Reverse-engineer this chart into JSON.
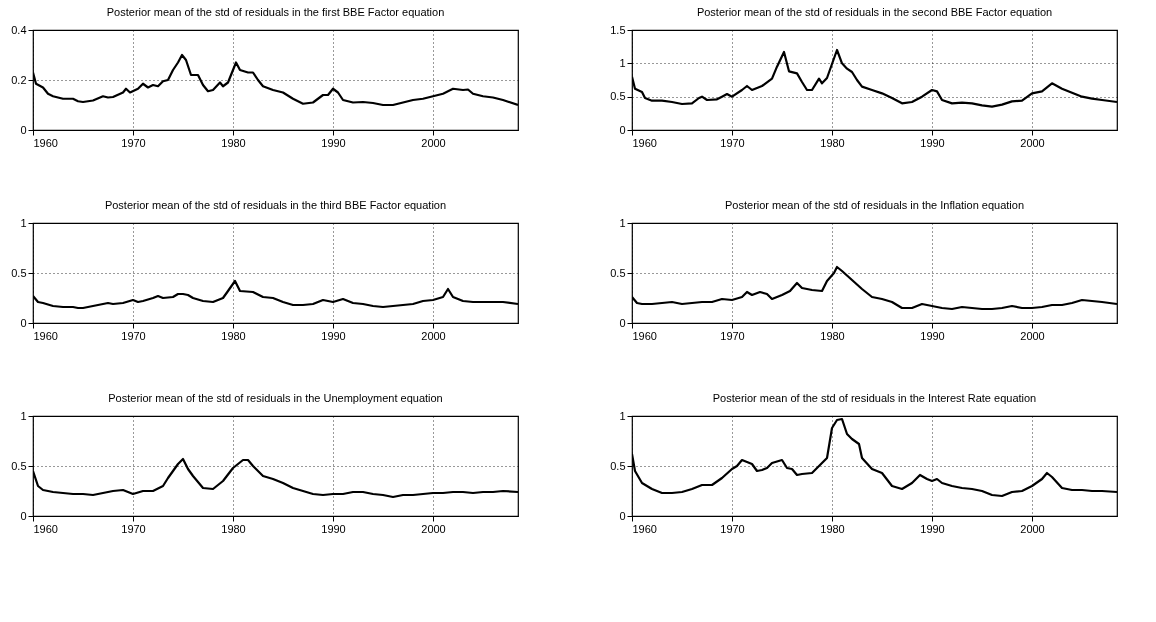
{
  "chart_data": [
    {
      "type": "line",
      "title": "Posterior mean of the std of residuals in the first BBE Factor equation",
      "color": "#000000",
      "line_style": "solid",
      "grid": true,
      "xlim": [
        1960,
        2008.5
      ],
      "xticks": [
        1960,
        1970,
        1980,
        1990,
        2000
      ],
      "ylim": [
        0,
        0.4
      ],
      "yticks": [
        0,
        0.2,
        0.4
      ],
      "x": [
        1960,
        1960.3,
        1961,
        1961.5,
        1962,
        1963,
        1964,
        1964.5,
        1965,
        1966,
        1967,
        1967.5,
        1968,
        1969,
        1969.3,
        1969.7,
        1970.5,
        1971,
        1971.5,
        1972,
        1972.5,
        1973,
        1973.5,
        1974,
        1974.5,
        1974.9,
        1975.3,
        1975.8,
        1976.5,
        1977,
        1977.5,
        1978,
        1978.7,
        1979,
        1979.5,
        1980.3,
        1980.7,
        1981.5,
        1982,
        1982.5,
        1983,
        1984,
        1985,
        1986,
        1987,
        1988,
        1989,
        1989.5,
        1990,
        1990.5,
        1991,
        1992,
        1993,
        1994,
        1995,
        1996,
        1997,
        1998,
        1999,
        2000,
        2001,
        2002,
        2003,
        2003.5,
        2004,
        2005,
        2006,
        2007,
        2008.5
      ],
      "values": [
        0.23,
        0.185,
        0.17,
        0.145,
        0.135,
        0.125,
        0.125,
        0.115,
        0.112,
        0.118,
        0.135,
        0.13,
        0.132,
        0.15,
        0.165,
        0.15,
        0.165,
        0.185,
        0.17,
        0.18,
        0.175,
        0.195,
        0.2,
        0.24,
        0.27,
        0.3,
        0.28,
        0.22,
        0.22,
        0.18,
        0.155,
        0.16,
        0.19,
        0.175,
        0.19,
        0.27,
        0.24,
        0.23,
        0.23,
        0.2,
        0.175,
        0.16,
        0.15,
        0.125,
        0.105,
        0.11,
        0.14,
        0.14,
        0.165,
        0.15,
        0.12,
        0.11,
        0.112,
        0.108,
        0.1,
        0.1,
        0.11,
        0.12,
        0.125,
        0.135,
        0.145,
        0.165,
        0.16,
        0.162,
        0.145,
        0.135,
        0.13,
        0.12,
        0.1
      ]
    },
    {
      "type": "line",
      "title": "Posterior mean of the std of residuals in the second BBE Factor equation",
      "color": "#000000",
      "line_style": "solid",
      "grid": true,
      "xlim": [
        1960,
        2008.5
      ],
      "xticks": [
        1960,
        1970,
        1980,
        1990,
        2000
      ],
      "ylim": [
        0,
        1.5
      ],
      "yticks": [
        0,
        0.5,
        1,
        1.5
      ],
      "x": [
        1960,
        1960.3,
        1961,
        1961.3,
        1962,
        1963,
        1964,
        1965,
        1966,
        1966.7,
        1967,
        1967.5,
        1968.5,
        1969,
        1969.5,
        1970,
        1971,
        1971.5,
        1972,
        1973,
        1974,
        1974.5,
        1975.2,
        1975.7,
        1976.5,
        1977,
        1977.5,
        1978,
        1978.7,
        1979,
        1979.5,
        1980.5,
        1981,
        1981.5,
        1982,
        1982.5,
        1983,
        1984,
        1985,
        1986,
        1987,
        1988,
        1989,
        1990,
        1990.5,
        1991,
        1992,
        1993,
        1994,
        1995,
        1996,
        1997,
        1998,
        1999,
        2000,
        2001,
        2002,
        2003,
        2004,
        2005,
        2006,
        2007,
        2008.5
      ],
      "values": [
        0.8,
        0.62,
        0.57,
        0.48,
        0.44,
        0.44,
        0.42,
        0.39,
        0.4,
        0.48,
        0.5,
        0.45,
        0.46,
        0.5,
        0.54,
        0.5,
        0.6,
        0.66,
        0.6,
        0.66,
        0.77,
        0.95,
        1.17,
        0.88,
        0.85,
        0.72,
        0.6,
        0.6,
        0.77,
        0.7,
        0.78,
        1.2,
        1.0,
        0.92,
        0.87,
        0.75,
        0.65,
        0.6,
        0.55,
        0.48,
        0.4,
        0.42,
        0.5,
        0.6,
        0.58,
        0.45,
        0.4,
        0.41,
        0.4,
        0.37,
        0.35,
        0.38,
        0.43,
        0.44,
        0.55,
        0.58,
        0.7,
        0.62,
        0.56,
        0.5,
        0.47,
        0.45,
        0.42
      ]
    },
    {
      "type": "line",
      "title": "Posterior mean of the std of residuals in the third BBE Factor equation",
      "color": "#000000",
      "line_style": "solid",
      "grid": true,
      "xlim": [
        1960,
        2008.5
      ],
      "xticks": [
        1960,
        1970,
        1980,
        1990,
        2000
      ],
      "ylim": [
        0,
        1
      ],
      "yticks": [
        0,
        0.5,
        1
      ],
      "x": [
        1960,
        1960.5,
        1961,
        1962,
        1963,
        1964,
        1964.5,
        1965,
        1966,
        1967,
        1967.5,
        1968,
        1969,
        1970,
        1970.5,
        1971,
        1972,
        1972.5,
        1973,
        1974,
        1974.5,
        1975,
        1975.5,
        1976,
        1977,
        1978,
        1979,
        1979.5,
        1980.2,
        1980.7,
        1982,
        1983,
        1984,
        1985,
        1986,
        1987,
        1988,
        1989,
        1990,
        1991,
        1992,
        1993,
        1994,
        1995,
        1996,
        1997,
        1998,
        1999,
        2000,
        2001,
        2001.5,
        2002,
        2003,
        2004,
        2005,
        2006,
        2007,
        2008.5
      ],
      "values": [
        0.27,
        0.21,
        0.2,
        0.17,
        0.16,
        0.16,
        0.15,
        0.15,
        0.17,
        0.19,
        0.2,
        0.19,
        0.2,
        0.23,
        0.21,
        0.22,
        0.25,
        0.27,
        0.25,
        0.26,
        0.29,
        0.29,
        0.28,
        0.25,
        0.22,
        0.21,
        0.25,
        0.32,
        0.42,
        0.32,
        0.31,
        0.26,
        0.25,
        0.21,
        0.18,
        0.18,
        0.19,
        0.23,
        0.21,
        0.24,
        0.2,
        0.19,
        0.17,
        0.16,
        0.17,
        0.18,
        0.19,
        0.22,
        0.23,
        0.26,
        0.34,
        0.26,
        0.22,
        0.21,
        0.21,
        0.21,
        0.21,
        0.19
      ]
    },
    {
      "type": "line",
      "title": "Posterior mean of the std of residuals in the Inflation equation",
      "color": "#000000",
      "line_style": "solid",
      "grid": true,
      "xlim": [
        1960,
        2008.5
      ],
      "xticks": [
        1960,
        1970,
        1980,
        1990,
        2000
      ],
      "ylim": [
        0,
        1
      ],
      "yticks": [
        0,
        0.5,
        1
      ],
      "x": [
        1960,
        1960.5,
        1961,
        1962,
        1963,
        1964,
        1965,
        1966,
        1967,
        1968,
        1969,
        1970,
        1971,
        1971.5,
        1972,
        1972.8,
        1973.5,
        1974,
        1975,
        1975.8,
        1976.5,
        1977,
        1978,
        1979,
        1979.5,
        1980.2,
        1980.5,
        1981,
        1982,
        1983,
        1984,
        1985,
        1986,
        1987,
        1988,
        1989,
        1990,
        1991,
        1992,
        1993,
        1994,
        1995,
        1996,
        1997,
        1998,
        1999,
        2000,
        2001,
        2002,
        2003,
        2004,
        2005,
        2006,
        2007,
        2008.5
      ],
      "values": [
        0.26,
        0.2,
        0.19,
        0.19,
        0.2,
        0.21,
        0.19,
        0.2,
        0.21,
        0.21,
        0.24,
        0.23,
        0.26,
        0.31,
        0.28,
        0.31,
        0.29,
        0.24,
        0.28,
        0.32,
        0.4,
        0.35,
        0.33,
        0.32,
        0.42,
        0.5,
        0.56,
        0.52,
        0.43,
        0.34,
        0.26,
        0.24,
        0.21,
        0.15,
        0.15,
        0.19,
        0.17,
        0.15,
        0.14,
        0.16,
        0.15,
        0.14,
        0.14,
        0.15,
        0.17,
        0.15,
        0.15,
        0.16,
        0.18,
        0.18,
        0.2,
        0.23,
        0.22,
        0.21,
        0.19
      ]
    },
    {
      "type": "line",
      "title": "Posterior mean of the std of residuals in the Unemployment equation",
      "color": "#000000",
      "line_style": "solid",
      "grid": true,
      "xlim": [
        1960,
        2008.5
      ],
      "xticks": [
        1960,
        1970,
        1980,
        1990,
        2000
      ],
      "ylim": [
        0,
        1
      ],
      "yticks": [
        0,
        0.5,
        1
      ],
      "x": [
        1960,
        1960.5,
        1961,
        1962,
        1963,
        1964,
        1965,
        1966,
        1967,
        1968,
        1969,
        1970,
        1971,
        1972,
        1973,
        1973.5,
        1974,
        1974.5,
        1975,
        1975.5,
        1976,
        1977,
        1978,
        1979,
        1980,
        1981,
        1981.5,
        1982,
        1983,
        1984,
        1985,
        1986,
        1987,
        1988,
        1989,
        1990,
        1991,
        1992,
        1993,
        1994,
        1995,
        1996,
        1997,
        1998,
        1999,
        2000,
        2001,
        2002,
        2003,
        2004,
        2005,
        2006,
        2007,
        2008.5
      ],
      "values": [
        0.45,
        0.3,
        0.26,
        0.24,
        0.23,
        0.22,
        0.22,
        0.21,
        0.23,
        0.25,
        0.26,
        0.22,
        0.25,
        0.25,
        0.3,
        0.38,
        0.45,
        0.52,
        0.57,
        0.47,
        0.4,
        0.28,
        0.27,
        0.35,
        0.48,
        0.56,
        0.56,
        0.5,
        0.4,
        0.37,
        0.33,
        0.28,
        0.25,
        0.22,
        0.21,
        0.22,
        0.22,
        0.24,
        0.24,
        0.22,
        0.21,
        0.19,
        0.21,
        0.21,
        0.22,
        0.23,
        0.23,
        0.24,
        0.24,
        0.23,
        0.24,
        0.24,
        0.25,
        0.24
      ]
    },
    {
      "type": "line",
      "title": "Posterior mean of the std of residuals in the Interest Rate equation",
      "color": "#000000",
      "line_style": "solid",
      "grid": true,
      "xlim": [
        1960,
        2008.5
      ],
      "xticks": [
        1960,
        1970,
        1980,
        1990,
        2000
      ],
      "ylim": [
        0,
        1
      ],
      "yticks": [
        0,
        0.5,
        1
      ],
      "x": [
        1960,
        1960.3,
        1961,
        1962,
        1963,
        1964,
        1965,
        1966,
        1967,
        1968,
        1969,
        1970,
        1970.5,
        1971,
        1972,
        1972.5,
        1973,
        1973.5,
        1974,
        1975,
        1975.5,
        1976,
        1976.5,
        1977,
        1978,
        1979,
        1979.5,
        1980,
        1980.5,
        1981,
        1981.5,
        1982,
        1982.7,
        1983,
        1984,
        1985,
        1986,
        1987,
        1988,
        1988.8,
        1989.5,
        1990,
        1990.5,
        1991,
        1992,
        1993,
        1994,
        1995,
        1996,
        1997,
        1998,
        1999,
        2000,
        2001,
        2001.5,
        2002,
        2003,
        2004,
        2005,
        2006,
        2007,
        2008.5
      ],
      "values": [
        0.62,
        0.45,
        0.33,
        0.27,
        0.23,
        0.23,
        0.24,
        0.27,
        0.31,
        0.31,
        0.38,
        0.47,
        0.5,
        0.56,
        0.52,
        0.45,
        0.46,
        0.48,
        0.53,
        0.56,
        0.48,
        0.47,
        0.41,
        0.42,
        0.43,
        0.53,
        0.58,
        0.88,
        0.96,
        0.97,
        0.82,
        0.77,
        0.72,
        0.58,
        0.47,
        0.43,
        0.3,
        0.27,
        0.33,
        0.41,
        0.37,
        0.35,
        0.37,
        0.33,
        0.3,
        0.28,
        0.27,
        0.25,
        0.21,
        0.2,
        0.24,
        0.25,
        0.3,
        0.37,
        0.43,
        0.39,
        0.28,
        0.26,
        0.26,
        0.25,
        0.25,
        0.24
      ]
    }
  ]
}
